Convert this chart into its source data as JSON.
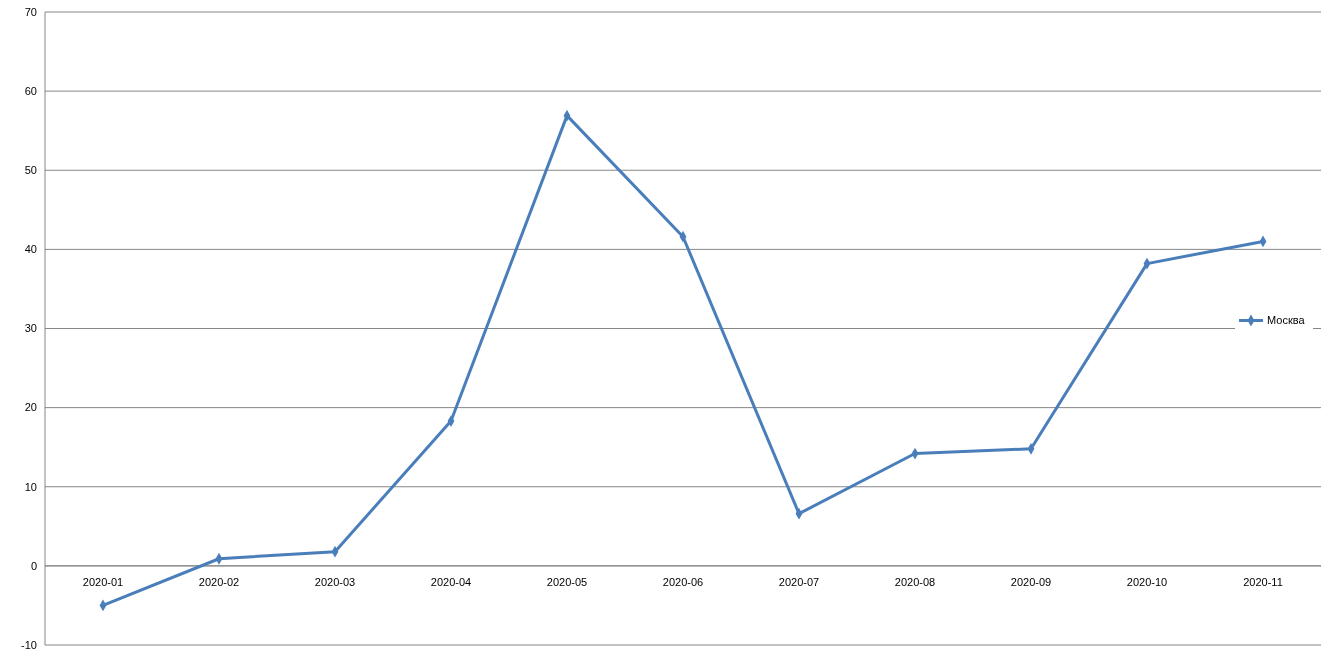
{
  "chart_data": {
    "type": "line",
    "categories": [
      "2020-01",
      "2020-02",
      "2020-03",
      "2020-04",
      "2020-05",
      "2020-06",
      "2020-07",
      "2020-08",
      "2020-09",
      "2020-10",
      "2020-11"
    ],
    "series": [
      {
        "name": "Москва",
        "color": "#4a7ebb",
        "values": [
          -5,
          0.9,
          1.8,
          18.3,
          56.9,
          41.6,
          6.6,
          14.2,
          14.8,
          38.2,
          41
        ]
      }
    ],
    "ylim": [
      -10,
      70
    ],
    "yticks": [
      -10,
      0,
      10,
      20,
      30,
      40,
      50,
      60,
      70
    ],
    "grid": "y",
    "legend": "right",
    "marker": "diamond",
    "line_style": "solid"
  }
}
